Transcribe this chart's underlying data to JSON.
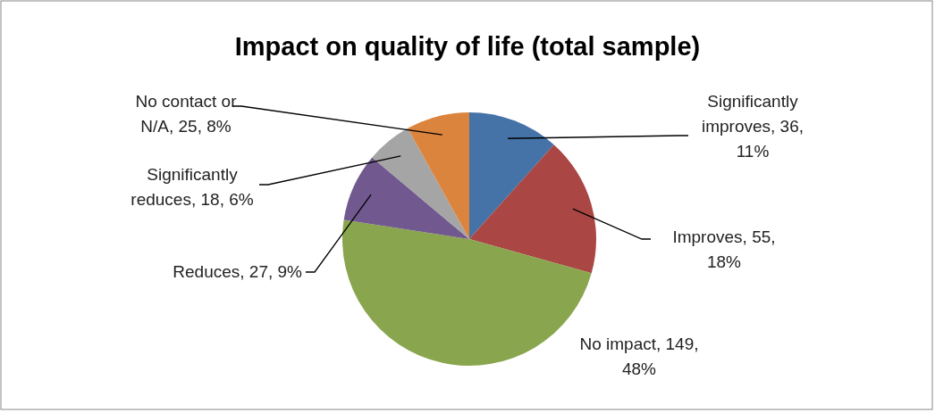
{
  "chart_data": {
    "type": "pie",
    "title": "Impact on quality of life (total sample)",
    "categories": [
      "Significantly improves",
      "Improves",
      "No impact",
      "Reduces",
      "Significantly reduces",
      "No contact or N/A"
    ],
    "values": [
      36,
      55,
      149,
      27,
      18,
      25
    ],
    "value_labels": [
      "36, 11%",
      "55, 18%",
      "149, 48%",
      "27, 9%",
      "18, 6%",
      "25, 8%"
    ],
    "colors": [
      "#4572a7",
      "#aa4643",
      "#89a54e",
      "#71588f",
      "#a5a5a5",
      "#db843d"
    ]
  }
}
